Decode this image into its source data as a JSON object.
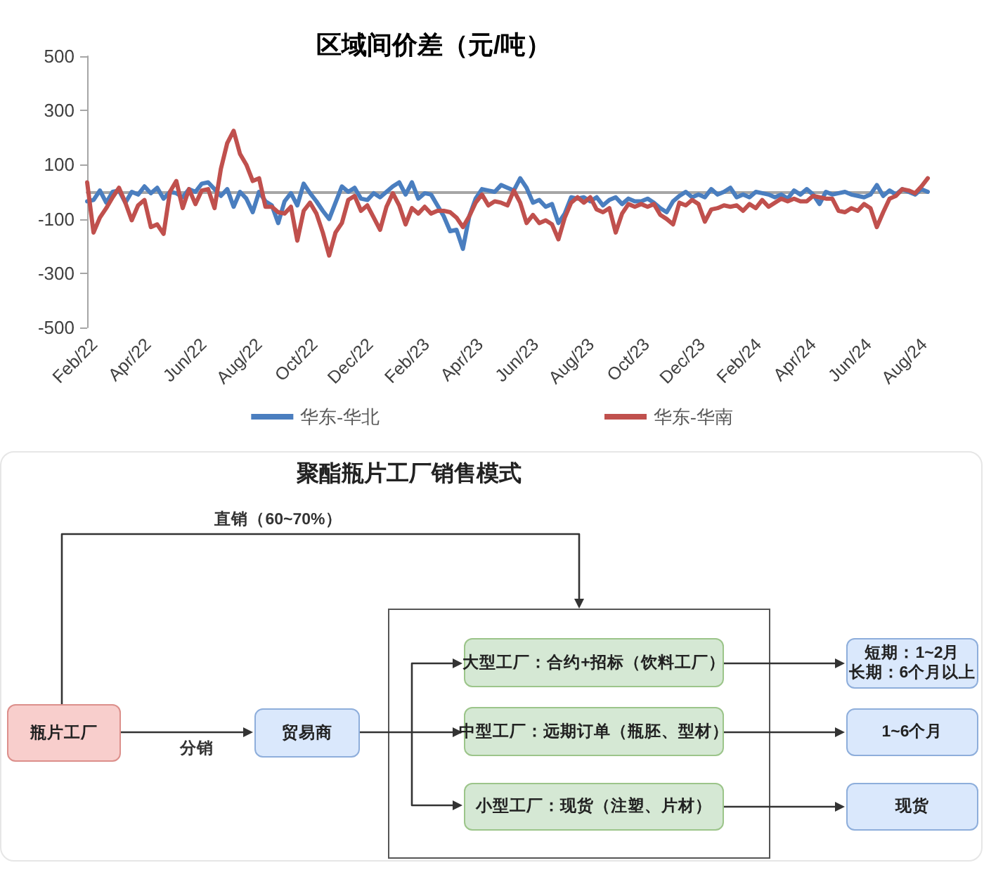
{
  "chart_data": [
    {
      "type": "line",
      "title": "区域间价差（元/吨）",
      "x": [
        "2022-01-24",
        "2022-01-31",
        "2022-02-07",
        "2022-02-14",
        "2022-02-21",
        "2022-02-28",
        "2022-03-07",
        "2022-03-14",
        "2022-03-21",
        "2022-03-28",
        "2022-04-04",
        "2022-04-11",
        "2022-04-18",
        "2022-04-25",
        "2022-05-02",
        "2022-05-09",
        "2022-05-16",
        "2022-05-23",
        "2022-05-30",
        "2022-06-06",
        "2022-06-13",
        "2022-06-20",
        "2022-06-27",
        "2022-07-04",
        "2022-07-11",
        "2022-07-18",
        "2022-07-25",
        "2022-08-01",
        "2022-08-08",
        "2022-08-15",
        "2022-08-22",
        "2022-08-29",
        "2022-09-05",
        "2022-09-12",
        "2022-09-19",
        "2022-09-26",
        "2022-10-03",
        "2022-10-10",
        "2022-10-17",
        "2022-10-24",
        "2022-10-31",
        "2022-11-07",
        "2022-11-14",
        "2022-11-21",
        "2022-11-28",
        "2022-12-05",
        "2022-12-12",
        "2022-12-19",
        "2022-12-26",
        "2023-01-02",
        "2023-01-09",
        "2023-01-16",
        "2023-01-23",
        "2023-01-30",
        "2023-02-06",
        "2023-02-13",
        "2023-02-20",
        "2023-02-27",
        "2023-03-06",
        "2023-03-13",
        "2023-03-20",
        "2023-03-27",
        "2023-04-03",
        "2023-04-10",
        "2023-04-17",
        "2023-04-24",
        "2023-05-01",
        "2023-05-08",
        "2023-05-15",
        "2023-05-22",
        "2023-05-29",
        "2023-06-05",
        "2023-06-12",
        "2023-06-19",
        "2023-06-26",
        "2023-07-03",
        "2023-07-10",
        "2023-07-17",
        "2023-07-24",
        "2023-07-31",
        "2023-08-07",
        "2023-08-14",
        "2023-08-21",
        "2023-08-28",
        "2023-09-04",
        "2023-09-11",
        "2023-09-18",
        "2023-09-25",
        "2023-10-02",
        "2023-10-09",
        "2023-10-16",
        "2023-10-23",
        "2023-10-30",
        "2023-11-06",
        "2023-11-13",
        "2023-11-20",
        "2023-11-27",
        "2023-12-04",
        "2023-12-11",
        "2023-12-18",
        "2023-12-25",
        "2024-01-01",
        "2024-01-08",
        "2024-01-15",
        "2024-01-22",
        "2024-01-29",
        "2024-02-05",
        "2024-02-12",
        "2024-02-19",
        "2024-02-26",
        "2024-03-04",
        "2024-03-11",
        "2024-03-18",
        "2024-03-25",
        "2024-04-01",
        "2024-04-08",
        "2024-04-15",
        "2024-04-22",
        "2024-04-29",
        "2024-05-06",
        "2024-05-13",
        "2024-05-20",
        "2024-05-27",
        "2024-06-03",
        "2024-06-10",
        "2024-06-17",
        "2024-06-24",
        "2024-07-01",
        "2024-07-08",
        "2024-07-15",
        "2024-07-22",
        "2024-07-29",
        "2024-08-05"
      ],
      "xlim": [
        "2022-01-24",
        "2024-08-05"
      ],
      "xticks": [
        {
          "value": "2022-02-01",
          "label": "Feb/22"
        },
        {
          "value": "2022-04-01",
          "label": "Apr/22"
        },
        {
          "value": "2022-06-01",
          "label": "Jun/22"
        },
        {
          "value": "2022-08-01",
          "label": "Aug/22"
        },
        {
          "value": "2022-10-01",
          "label": "Oct/22"
        },
        {
          "value": "2022-12-01",
          "label": "Dec/22"
        },
        {
          "value": "2023-02-01",
          "label": "Feb/23"
        },
        {
          "value": "2023-04-01",
          "label": "Apr/23"
        },
        {
          "value": "2023-06-01",
          "label": "Jun/23"
        },
        {
          "value": "2023-08-01",
          "label": "Aug/23"
        },
        {
          "value": "2023-10-01",
          "label": "Oct/23"
        },
        {
          "value": "2023-12-01",
          "label": "Dec/23"
        },
        {
          "value": "2024-02-01",
          "label": "Feb/24"
        },
        {
          "value": "2024-04-01",
          "label": "Apr/24"
        },
        {
          "value": "2024-06-01",
          "label": "Jun/24"
        },
        {
          "value": "2024-08-01",
          "label": "Aug/24"
        }
      ],
      "ylim": [
        -500,
        500
      ],
      "yticks": [
        -500,
        -300,
        -100,
        100,
        300,
        500
      ],
      "series": [
        {
          "name": "华东-华北",
          "color": "#4a7ebf",
          "values": [
            -35,
            -30,
            5,
            -40,
            0,
            5,
            -40,
            0,
            -10,
            20,
            -5,
            15,
            -25,
            0,
            -5,
            -20,
            10,
            0,
            30,
            35,
            10,
            -15,
            10,
            -55,
            0,
            -25,
            -75,
            0,
            -35,
            -50,
            -115,
            -35,
            -5,
            -50,
            30,
            -5,
            -35,
            -70,
            -100,
            -40,
            20,
            0,
            15,
            -25,
            -30,
            -5,
            -20,
            0,
            20,
            35,
            -10,
            35,
            -25,
            -5,
            -10,
            -50,
            -90,
            -145,
            -140,
            -210,
            -90,
            -25,
            10,
            5,
            0,
            25,
            15,
            5,
            50,
            15,
            -40,
            -30,
            -55,
            -45,
            -115,
            -80,
            -20,
            -25,
            -20,
            -35,
            -20,
            -50,
            -30,
            -20,
            -45,
            -25,
            -35,
            -35,
            -25,
            -40,
            -60,
            -75,
            -35,
            -15,
            0,
            -20,
            -10,
            -20,
            10,
            -10,
            0,
            15,
            -20,
            -10,
            -20,
            0,
            -5,
            -10,
            -20,
            -10,
            -25,
            5,
            -10,
            10,
            -10,
            -45,
            0,
            -10,
            -5,
            0,
            -10,
            -15,
            -20,
            -10,
            25,
            -15,
            5,
            -10,
            10,
            0,
            -10,
            10,
            0
          ]
        },
        {
          "name": "华东-华南",
          "color": "#c0504d",
          "values": [
            35,
            -150,
            -95,
            -60,
            -20,
            15,
            -40,
            -105,
            -50,
            -30,
            -130,
            -120,
            -155,
            0,
            40,
            -60,
            10,
            -45,
            5,
            10,
            -60,
            85,
            180,
            225,
            140,
            100,
            40,
            50,
            -55,
            -55,
            -75,
            -80,
            -55,
            -180,
            -70,
            -40,
            -80,
            -150,
            -235,
            -150,
            -115,
            -30,
            -15,
            -70,
            -50,
            -95,
            -140,
            -55,
            -5,
            -50,
            -120,
            -60,
            -80,
            -55,
            -80,
            -70,
            -70,
            -75,
            -95,
            -130,
            -90,
            -40,
            -10,
            -50,
            -35,
            -40,
            -50,
            5,
            -40,
            -115,
            -85,
            -115,
            -105,
            -120,
            -175,
            -95,
            -40,
            -20,
            -40,
            -20,
            -65,
            -75,
            -60,
            -150,
            -80,
            -45,
            -55,
            -45,
            -55,
            -45,
            -85,
            -100,
            -120,
            -40,
            -50,
            -30,
            -45,
            -110,
            -65,
            -60,
            -50,
            -55,
            -50,
            -70,
            -45,
            -60,
            -30,
            -55,
            -40,
            -25,
            -35,
            -25,
            -35,
            -35,
            -15,
            -20,
            -25,
            -25,
            -70,
            -75,
            -60,
            -70,
            -45,
            -60,
            -130,
            -75,
            -25,
            -15,
            10,
            5,
            -5,
            20,
            50
          ]
        }
      ],
      "legend": "bottom"
    },
    {
      "type": "other",
      "title": "聚酯瓶片工厂销售模式",
      "annotations": [
        "直销（60~70%）",
        "瓶片工厂",
        "分销",
        "贸易商",
        "大型工厂：合约+招标（饮料工厂）",
        "中型工厂：远期订单（瓶胚、型材）",
        "小型工厂：现货（注塑、片材）",
        "短期：1~2月",
        "长期：6个月以上",
        "1~6个月",
        "现货"
      ]
    }
  ]
}
